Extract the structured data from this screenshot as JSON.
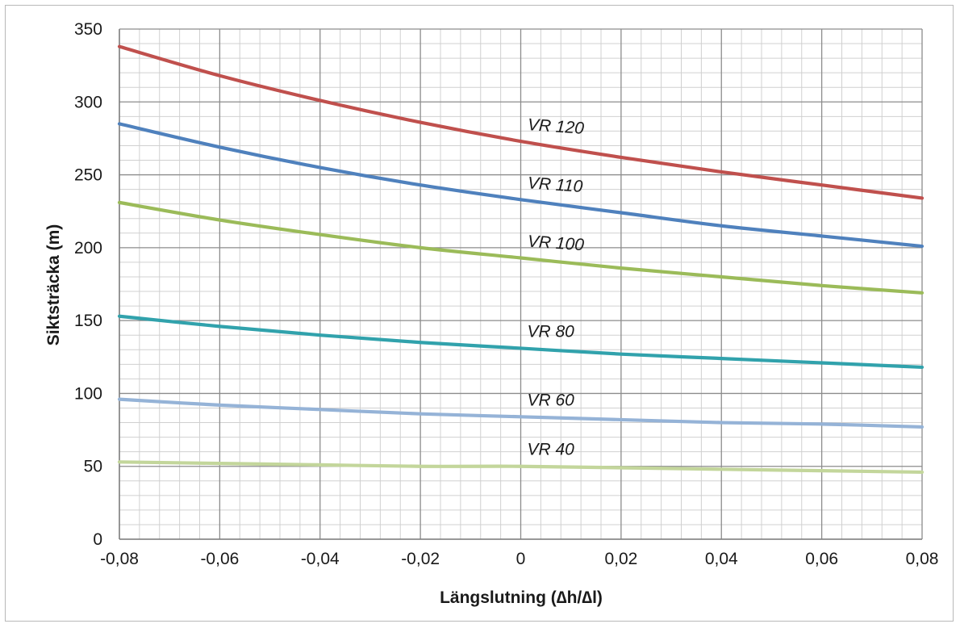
{
  "chart_data": {
    "type": "line",
    "title": "",
    "xlabel": "Längslutning (∆h/∆l)",
    "ylabel": "Siktsträcka (m)",
    "xlim": [
      -0.08,
      0.08
    ],
    "ylim": [
      0,
      350
    ],
    "x_ticks": [
      -0.08,
      -0.06,
      -0.04,
      -0.02,
      0,
      0.02,
      0.04,
      0.06,
      0.08
    ],
    "x_tick_labels": [
      "-0,08",
      "-0,06",
      "-0,04",
      "-0,02",
      "0",
      "0,02",
      "0,04",
      "0,06",
      "0,08"
    ],
    "y_ticks": [
      0,
      50,
      100,
      150,
      200,
      250,
      300,
      350
    ],
    "y_tick_labels": [
      "0",
      "50",
      "100",
      "150",
      "200",
      "250",
      "300",
      "350"
    ],
    "grid": true,
    "legend": "none",
    "x": [
      -0.08,
      -0.06,
      -0.04,
      -0.02,
      0,
      0.02,
      0.04,
      0.06,
      0.08
    ],
    "series": [
      {
        "name": "VR 120",
        "color": "#c0504d",
        "values": [
          338,
          318,
          301,
          286,
          273,
          262,
          252,
          243,
          234
        ]
      },
      {
        "name": "VR 110",
        "color": "#4f81bd",
        "values": [
          285,
          269,
          255,
          243,
          233,
          224,
          215,
          208,
          201
        ]
      },
      {
        "name": "VR 100",
        "color": "#9bbb59",
        "values": [
          231,
          219,
          209,
          200,
          193,
          186,
          180,
          174,
          169
        ]
      },
      {
        "name": "VR 80",
        "color": "#31a2ac",
        "values": [
          153,
          146,
          140,
          135,
          131,
          127,
          124,
          121,
          118
        ]
      },
      {
        "name": "VR 60",
        "color": "#95b3d7",
        "values": [
          96,
          92,
          89,
          86,
          84,
          82,
          80,
          79,
          77
        ]
      },
      {
        "name": "VR 40",
        "color": "#c3d69b",
        "values": [
          53,
          52,
          51,
          50,
          50,
          49,
          48,
          47,
          46
        ]
      }
    ]
  }
}
